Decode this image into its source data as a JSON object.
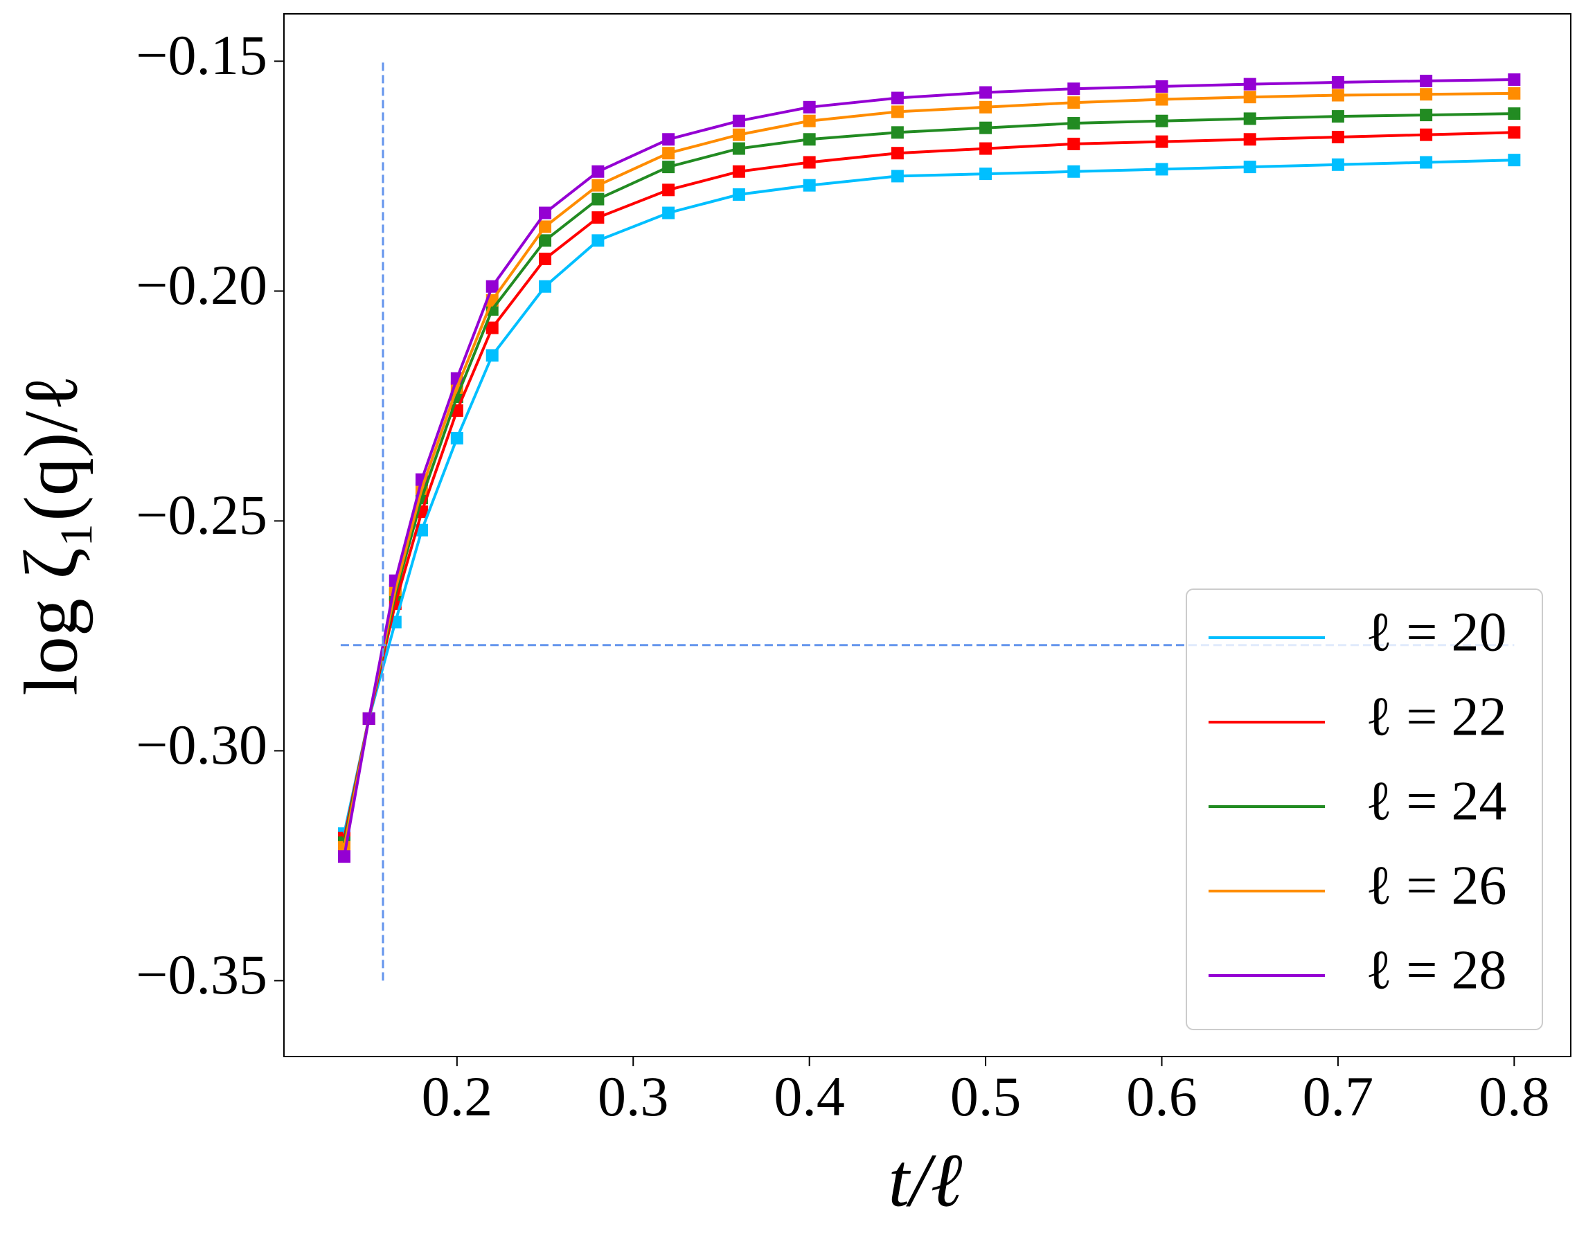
{
  "chart_data": {
    "type": "line",
    "xlabel": "t/ℓ",
    "ylabel": "log ζ₁(q)/ℓ",
    "x": [
      0.136,
      0.15,
      0.165,
      0.18,
      0.2,
      0.22,
      0.25,
      0.28,
      0.32,
      0.36,
      0.4,
      0.45,
      0.5,
      0.55,
      0.6,
      0.65,
      0.7,
      0.75,
      0.8
    ],
    "series": [
      {
        "name": "ℓ = 20",
        "color": "#00bfff",
        "values": [
          -0.318,
          -0.293,
          -0.272,
          -0.252,
          -0.232,
          -0.214,
          -0.199,
          -0.189,
          -0.183,
          -0.179,
          -0.177,
          -0.175,
          -0.1745,
          -0.174,
          -0.1735,
          -0.173,
          -0.1725,
          -0.172,
          -0.1715
        ]
      },
      {
        "name": "ℓ = 22",
        "color": "#ff0000",
        "values": [
          -0.319,
          -0.293,
          -0.268,
          -0.248,
          -0.226,
          -0.208,
          -0.193,
          -0.184,
          -0.178,
          -0.174,
          -0.172,
          -0.17,
          -0.169,
          -0.168,
          -0.1675,
          -0.167,
          -0.1665,
          -0.166,
          -0.1655
        ]
      },
      {
        "name": "ℓ = 24",
        "color": "#228b22",
        "values": [
          -0.32,
          -0.293,
          -0.266,
          -0.245,
          -0.223,
          -0.204,
          -0.189,
          -0.18,
          -0.173,
          -0.169,
          -0.167,
          -0.1655,
          -0.1645,
          -0.1635,
          -0.163,
          -0.1625,
          -0.162,
          -0.1617,
          -0.1614
        ]
      },
      {
        "name": "ℓ = 26",
        "color": "#ff8c00",
        "values": [
          -0.321,
          -0.293,
          -0.265,
          -0.243,
          -0.221,
          -0.202,
          -0.186,
          -0.177,
          -0.17,
          -0.166,
          -0.163,
          -0.161,
          -0.16,
          -0.159,
          -0.1583,
          -0.1578,
          -0.1574,
          -0.1572,
          -0.157
        ]
      },
      {
        "name": "ℓ = 28",
        "color": "#9400d3",
        "values": [
          -0.323,
          -0.293,
          -0.263,
          -0.241,
          -0.219,
          -0.199,
          -0.183,
          -0.174,
          -0.167,
          -0.163,
          -0.16,
          -0.158,
          -0.1568,
          -0.156,
          -0.1555,
          -0.155,
          -0.1546,
          -0.1543,
          -0.154
        ]
      }
    ],
    "xlim": [
      0.1018,
      0.8321
    ],
    "ylim": [
      -0.3665,
      -0.1397
    ],
    "xticks": [
      0.2,
      0.3,
      0.4,
      0.5,
      0.6,
      0.7,
      0.8
    ],
    "yticks": [
      {
        "value": -0.35,
        "label": "−0.35"
      },
      {
        "value": -0.3,
        "label": "−0.30"
      },
      {
        "value": -0.25,
        "label": "−0.25"
      },
      {
        "value": -0.2,
        "label": "−0.20"
      },
      {
        "value": -0.15,
        "label": "−0.15"
      }
    ],
    "vline": {
      "x": 0.158,
      "span": [
        -0.35,
        -0.15
      ],
      "color": "#6495ed"
    },
    "hline": {
      "y": -0.277,
      "span": [
        0.134,
        0.8
      ],
      "color": "#6495ed"
    },
    "legend": "lower right",
    "grid": false
  }
}
